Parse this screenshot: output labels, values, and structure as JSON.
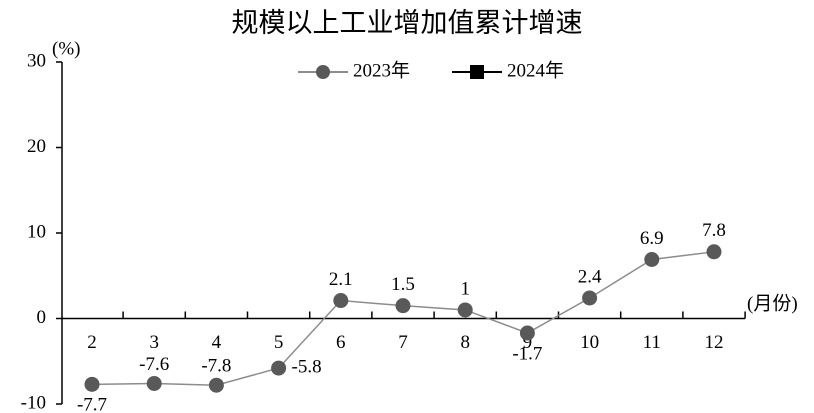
{
  "chart_data": {
    "type": "line",
    "title": "规模以上工业增加值累计增速",
    "y_label": "(%)",
    "x_label": "(月份)",
    "categories": [
      "2",
      "3",
      "4",
      "5",
      "6",
      "7",
      "8",
      "9",
      "10",
      "11",
      "12"
    ],
    "series": [
      {
        "name": "2023年",
        "color": "#595959",
        "line_color": "#8c8c8c",
        "marker": "circle",
        "values": [
          -7.7,
          -7.6,
          -7.8,
          -5.8,
          2.1,
          1.5,
          1,
          -1.7,
          2.4,
          6.9,
          7.8
        ]
      },
      {
        "name": "2024年",
        "color": "#000000",
        "line_color": "#000000",
        "marker": "square",
        "values": [
          null,
          null,
          null,
          null,
          null,
          null,
          null,
          null,
          null,
          null,
          null
        ]
      }
    ],
    "ylim": [
      -10,
      30
    ],
    "yticks": [
      -10,
      0,
      10,
      20,
      30
    ]
  }
}
